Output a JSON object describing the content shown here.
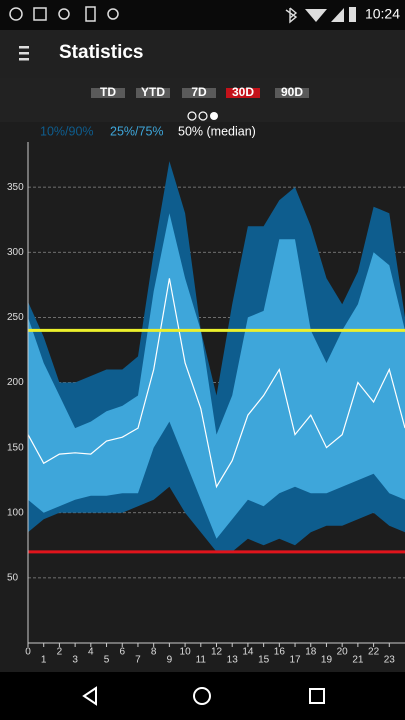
{
  "status_bar": {
    "time": "10:24"
  },
  "app_bar": {
    "title": "Statistics"
  },
  "tabs": {
    "items": [
      "TD",
      "YTD",
      "7D",
      "30D",
      "90D"
    ],
    "selected": 3
  },
  "chart_data": {
    "type": "percentile-bands",
    "x": [
      0,
      1,
      2,
      3,
      4,
      5,
      6,
      7,
      8,
      9,
      10,
      11,
      12,
      13,
      14,
      15,
      16,
      17,
      18,
      19,
      20,
      21,
      22,
      23,
      24
    ],
    "series": [
      {
        "name": "10%/90%",
        "color": "#0e5d8e",
        "lower": [
          85,
          95,
          100,
          100,
          100,
          100,
          100,
          105,
          110,
          120,
          100,
          85,
          70,
          70,
          80,
          75,
          80,
          75,
          85,
          90,
          90,
          95,
          100,
          90,
          85
        ],
        "upper": [
          262,
          235,
          200,
          200,
          205,
          210,
          210,
          220,
          300,
          370,
          330,
          240,
          190,
          260,
          320,
          320,
          340,
          350,
          320,
          280,
          260,
          285,
          335,
          330,
          250
        ]
      },
      {
        "name": "25%/75%",
        "color": "#3ea6da",
        "lower": [
          110,
          100,
          105,
          110,
          113,
          113,
          115,
          115,
          150,
          170,
          140,
          110,
          80,
          95,
          110,
          105,
          115,
          120,
          115,
          115,
          120,
          125,
          130,
          115,
          110
        ],
        "upper": [
          250,
          215,
          190,
          165,
          170,
          178,
          182,
          190,
          270,
          330,
          280,
          240,
          160,
          190,
          250,
          255,
          310,
          310,
          240,
          215,
          240,
          260,
          300,
          290,
          240
        ]
      },
      {
        "name": "50% (median)",
        "color": "#ffffff",
        "values": [
          160,
          138,
          145,
          146,
          145,
          155,
          158,
          165,
          210,
          280,
          215,
          180,
          120,
          140,
          175,
          190,
          210,
          160,
          175,
          150,
          160,
          200,
          185,
          210,
          165
        ]
      }
    ],
    "thresholds": [
      {
        "value": 240,
        "color": "#ecf02c"
      },
      {
        "value": 70,
        "color": "#e0141c"
      }
    ],
    "xlim": [
      0,
      24
    ],
    "xticks": [
      0,
      1,
      2,
      3,
      4,
      5,
      6,
      7,
      8,
      9,
      10,
      11,
      12,
      13,
      14,
      15,
      16,
      17,
      18,
      19,
      20,
      21,
      22,
      23
    ],
    "ylim": [
      0,
      400
    ],
    "yticks": [
      50,
      100,
      150,
      200,
      250,
      300,
      350
    ],
    "grid": true
  }
}
